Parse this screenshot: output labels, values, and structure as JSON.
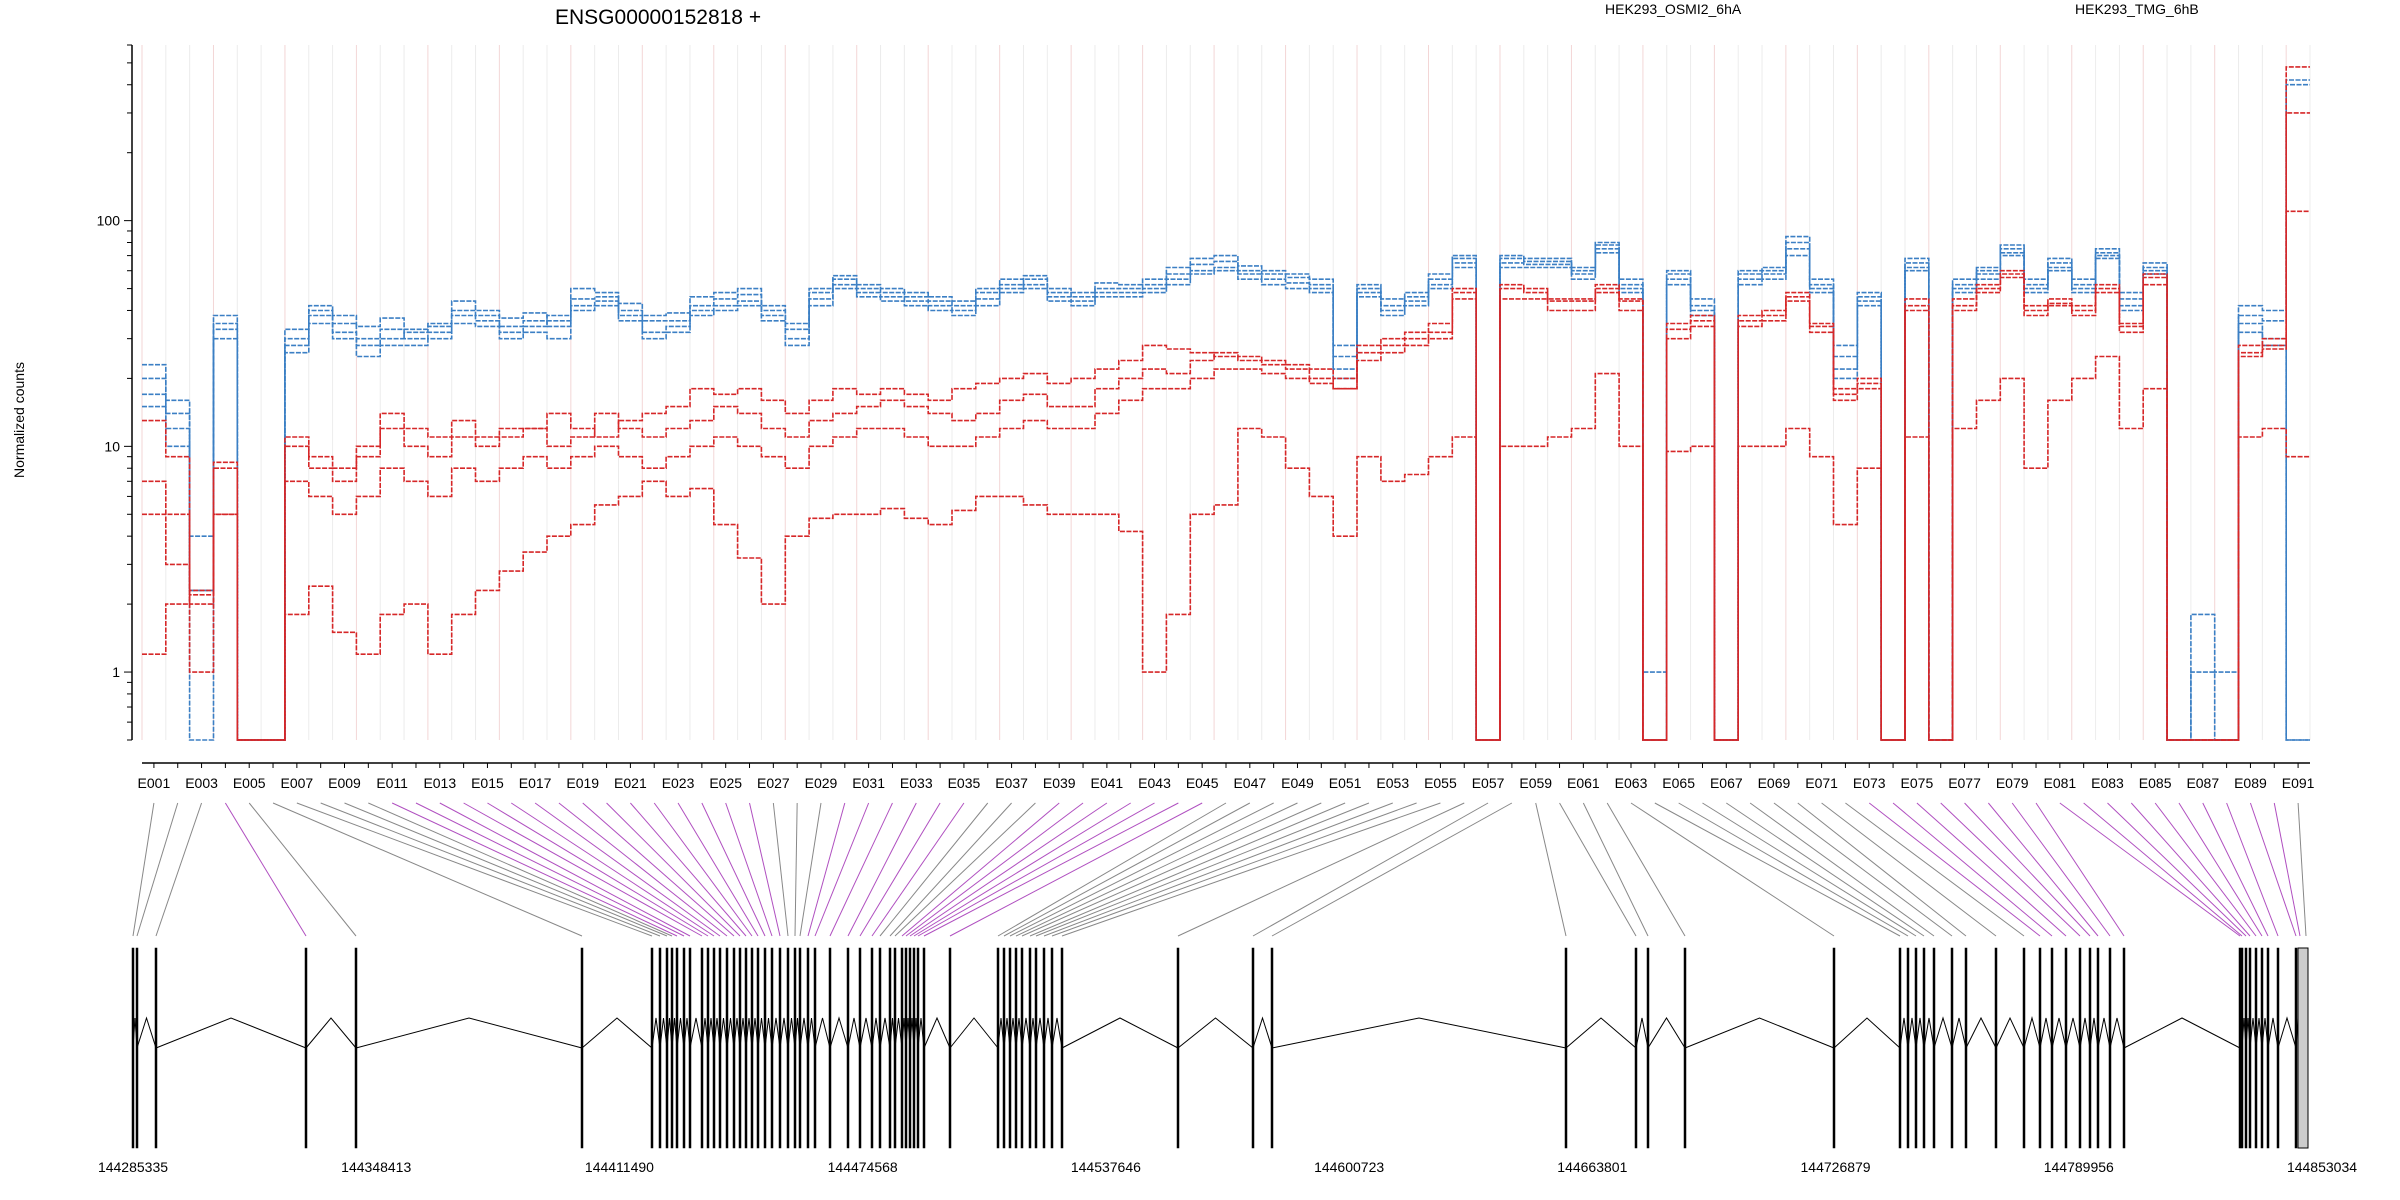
{
  "chart_data": {
    "type": "line",
    "title": "ENSG00000152818 +",
    "ylabel": "Normalized counts",
    "yscale": "log",
    "ylim": [
      0.5,
      600
    ],
    "y_ticks": [
      1,
      10,
      100
    ],
    "y_tick_labels": [
      "1",
      "10",
      "100"
    ],
    "grid": true,
    "legend_position": "top",
    "legend": [
      {
        "label": "HEK293_OSMI2_6hA",
        "color": "#d62728"
      },
      {
        "label": "HEK293_TMG_6hB",
        "color": "#3b7fc4"
      }
    ],
    "exon_labels": [
      "E001",
      "E003",
      "E005",
      "E007",
      "E009",
      "E011",
      "E013",
      "E015",
      "E017",
      "E019",
      "E021",
      "E023",
      "E025",
      "E027",
      "E029",
      "E031",
      "E033",
      "E035",
      "E037",
      "E039",
      "E041",
      "E043",
      "E045",
      "E047",
      "E049",
      "E051",
      "E053",
      "E055",
      "E057",
      "E059",
      "E061",
      "E063",
      "E065",
      "E067",
      "E069",
      "E071",
      "E073",
      "E075",
      "E077",
      "E079",
      "E081",
      "E083",
      "E085",
      "E087",
      "E089",
      "E091"
    ],
    "num_exons": 91,
    "series": [
      {
        "group": "HEK293_TMG_6hB",
        "color": "#3b7fc4",
        "values": [
          20,
          14,
          2.3,
          35,
          0.5,
          0.5,
          33,
          42,
          38,
          34,
          37,
          33,
          34,
          44,
          40,
          37,
          39,
          36,
          50,
          48,
          43,
          38,
          39,
          46,
          48,
          50,
          42,
          35,
          50,
          57,
          52,
          50,
          48,
          46,
          44,
          50,
          55,
          57,
          50,
          48,
          53,
          52,
          55,
          62,
          68,
          70,
          63,
          60,
          58,
          55,
          28,
          52,
          45,
          48,
          58,
          70,
          0.5,
          70,
          68,
          68,
          62,
          80,
          55,
          0.5,
          60,
          45,
          0.5,
          60,
          60,
          70,
          55,
          28,
          48,
          0.5,
          68,
          0.5,
          55,
          62,
          78,
          55,
          68,
          55,
          75,
          48,
          65,
          0.5,
          0.5,
          0.5,
          42,
          40,
          420
        ]
      },
      {
        "group": "HEK293_TMG_6hB",
        "color": "#3b7fc4",
        "values": [
          17,
          12,
          4,
          33,
          0.5,
          0.5,
          30,
          40,
          35,
          30,
          33,
          30,
          32,
          40,
          38,
          34,
          36,
          34,
          45,
          46,
          40,
          36,
          36,
          42,
          45,
          47,
          40,
          33,
          48,
          55,
          50,
          48,
          46,
          44,
          42,
          48,
          52,
          55,
          48,
          46,
          50,
          50,
          52,
          58,
          64,
          66,
          60,
          58,
          56,
          52,
          25,
          50,
          42,
          46,
          55,
          68,
          0.5,
          68,
          66,
          66,
          60,
          78,
          52,
          1,
          58,
          42,
          0.5,
          58,
          62,
          85,
          52,
          25,
          46,
          0.5,
          65,
          0.5,
          52,
          60,
          75,
          52,
          65,
          52,
          72,
          45,
          62,
          0.5,
          1.8,
          1,
          38,
          36,
          400
        ]
      },
      {
        "group": "HEK293_TMG_6hB",
        "color": "#3b7fc4",
        "values": [
          23,
          16,
          0.5,
          38,
          0.5,
          0.5,
          28,
          38,
          32,
          28,
          30,
          32,
          35,
          38,
          36,
          32,
          34,
          38,
          42,
          44,
          38,
          32,
          34,
          40,
          42,
          44,
          38,
          30,
          45,
          52,
          48,
          46,
          44,
          42,
          40,
          45,
          50,
          52,
          46,
          44,
          48,
          48,
          50,
          55,
          60,
          62,
          58,
          55,
          53,
          50,
          22,
          48,
          40,
          44,
          52,
          65,
          0.5,
          65,
          64,
          64,
          58,
          75,
          50,
          0.5,
          55,
          40,
          0.5,
          55,
          58,
          80,
          50,
          22,
          44,
          0.5,
          62,
          0.5,
          50,
          58,
          72,
          50,
          62,
          50,
          70,
          42,
          60,
          0.5,
          1,
          0.5,
          35,
          30,
          0.5
        ]
      },
      {
        "group": "HEK293_TMG_6hB",
        "color": "#3b7fc4",
        "values": [
          15,
          10,
          2.3,
          30,
          0.5,
          0.5,
          26,
          35,
          30,
          25,
          28,
          28,
          30,
          35,
          34,
          30,
          32,
          30,
          40,
          42,
          36,
          30,
          32,
          38,
          40,
          42,
          36,
          28,
          42,
          50,
          46,
          44,
          42,
          40,
          38,
          42,
          48,
          50,
          44,
          42,
          46,
          46,
          48,
          52,
          58,
          60,
          55,
          52,
          50,
          48,
          20,
          46,
          38,
          42,
          50,
          62,
          0.5,
          62,
          62,
          62,
          55,
          72,
          48,
          0.5,
          52,
          38,
          0.5,
          52,
          55,
          75,
          48,
          20,
          42,
          0.5,
          60,
          0.5,
          48,
          55,
          70,
          48,
          60,
          48,
          68,
          40,
          58,
          0.5,
          0.5,
          0.5,
          32,
          28,
          0.5
        ]
      },
      {
        "group": "HEK293_OSMI2_6hA",
        "color": "#d62728",
        "values": [
          13,
          9,
          2.3,
          8,
          0.5,
          0.5,
          10,
          8,
          7,
          9,
          12,
          10,
          9,
          11,
          10,
          11,
          12,
          10,
          11,
          14,
          12,
          11,
          12,
          13,
          15,
          14,
          12,
          11,
          13,
          14,
          15,
          16,
          15,
          14,
          13,
          14,
          16,
          17,
          15,
          15,
          18,
          20,
          22,
          21,
          24,
          26,
          25,
          24,
          23,
          22,
          20,
          28,
          30,
          32,
          35,
          50,
          0.5,
          52,
          50,
          45,
          45,
          52,
          45,
          0.5,
          35,
          38,
          0.5,
          38,
          40,
          48,
          35,
          18,
          20,
          0.5,
          45,
          0.5,
          45,
          52,
          60,
          42,
          45,
          42,
          52,
          35,
          58,
          0.5,
          0.5,
          0.5,
          28,
          30,
          480
        ]
      },
      {
        "group": "HEK293_OSMI2_6hA",
        "color": "#d62728",
        "values": [
          7,
          5,
          2,
          5,
          0.5,
          0.5,
          7,
          6,
          5,
          6,
          8,
          7,
          6,
          8,
          7,
          8,
          9,
          8,
          9,
          10,
          9,
          8,
          9,
          10,
          11,
          10,
          9,
          8,
          10,
          11,
          12,
          12,
          11,
          10,
          10,
          11,
          12,
          13,
          12,
          12,
          14,
          16,
          18,
          18,
          20,
          22,
          22,
          21,
          20,
          19,
          18,
          24,
          26,
          28,
          30,
          45,
          0.5,
          45,
          45,
          40,
          40,
          48,
          40,
          0.5,
          30,
          34,
          0.5,
          34,
          36,
          44,
          32,
          16,
          18,
          0.5,
          40,
          0.5,
          40,
          48,
          56,
          38,
          42,
          38,
          48,
          32,
          52,
          0.5,
          0.5,
          0.5,
          25,
          27,
          110
        ]
      },
      {
        "group": "HEK293_OSMI2_6hA",
        "color": "#d62728",
        "values": [
          5,
          3,
          1,
          8.5,
          0.5,
          0.5,
          11,
          9,
          8,
          10,
          14,
          12,
          11,
          13,
          11,
          12,
          12,
          14,
          12,
          11,
          13,
          14,
          15,
          18,
          17,
          18,
          16,
          14,
          16,
          18,
          17,
          18,
          17,
          16,
          18,
          19,
          20,
          21,
          19,
          20,
          22,
          24,
          28,
          27,
          26,
          25,
          24,
          23,
          22,
          20,
          18,
          26,
          28,
          30,
          32,
          48,
          0.5,
          50,
          48,
          44,
          44,
          50,
          44,
          0.5,
          33,
          36,
          0.5,
          36,
          38,
          46,
          34,
          17,
          19,
          0.5,
          42,
          0.5,
          42,
          50,
          58,
          40,
          43,
          40,
          50,
          34,
          56,
          0.5,
          0.5,
          0.5,
          26,
          28,
          300
        ]
      },
      {
        "group": "HEK293_OSMI2_6hA",
        "color": "#d62728",
        "values": [
          1.2,
          2,
          2.2,
          5,
          0.5,
          0.5,
          1.8,
          2.4,
          1.5,
          1.2,
          1.8,
          2,
          1.2,
          1.8,
          2.3,
          2.8,
          3.4,
          4,
          4.5,
          5.5,
          6,
          7,
          6,
          6.5,
          4.5,
          3.2,
          2,
          4,
          4.8,
          5,
          5,
          5.3,
          4.8,
          4.5,
          5.2,
          6,
          6,
          5.5,
          5,
          5,
          5,
          4.2,
          1,
          1.8,
          5,
          5.5,
          12,
          11,
          8,
          6,
          4,
          9,
          7,
          7.5,
          9,
          11,
          0.5,
          10,
          10,
          11,
          12,
          21,
          10,
          0.5,
          9.5,
          10,
          0.5,
          10,
          10,
          12,
          9,
          4.5,
          8,
          0.5,
          11,
          0.5,
          12,
          16,
          20,
          8,
          16,
          20,
          25,
          12,
          18,
          0.5,
          0.5,
          0.5,
          11,
          12,
          9
        ]
      }
    ],
    "genome_axis": {
      "start": 144285335,
      "end": 144853034,
      "tick_labels": [
        "144285335",
        "144348413",
        "144411490",
        "144474568",
        "144537646",
        "144600723",
        "144663801",
        "144726879",
        "144789956",
        "144853034"
      ]
    }
  }
}
